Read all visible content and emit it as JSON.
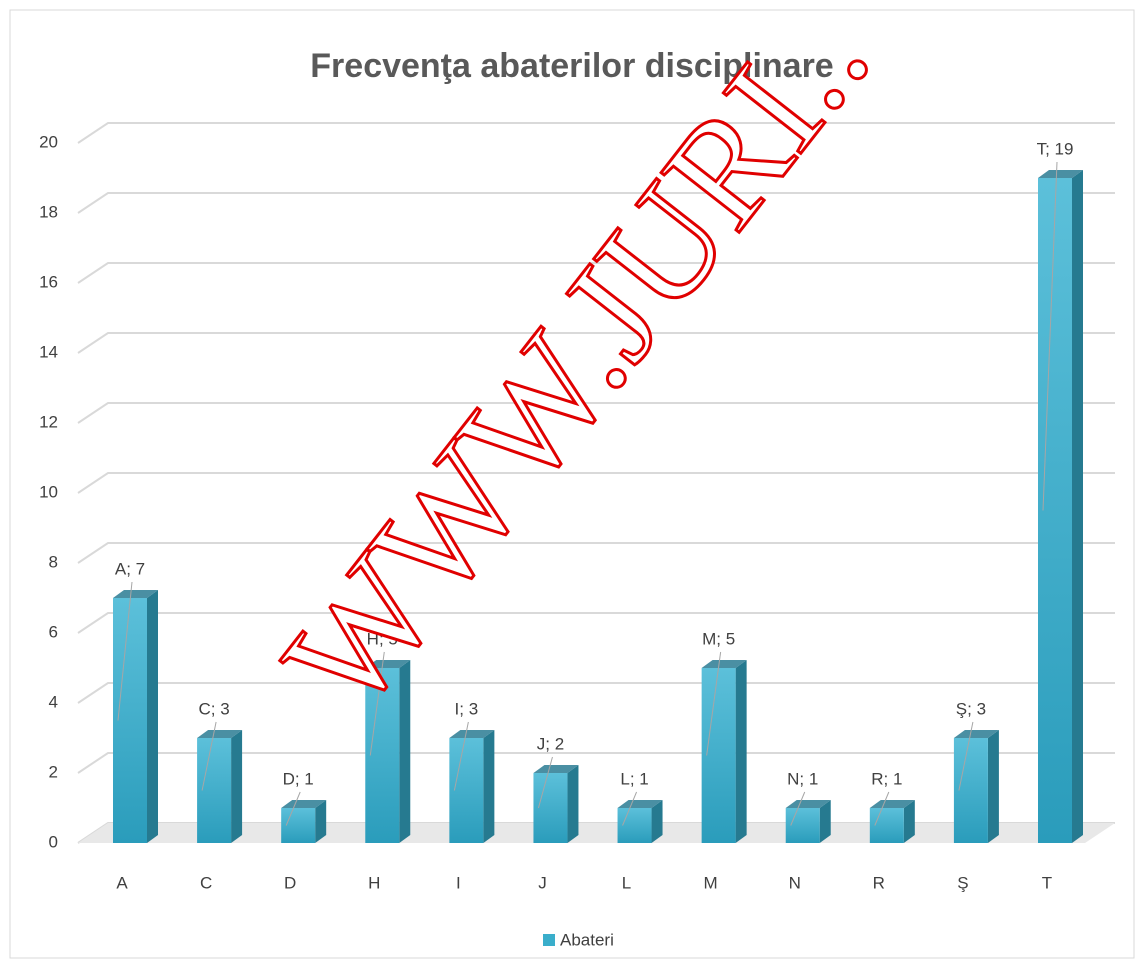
{
  "chart_data": {
    "type": "bar3d",
    "title": "Frecvenţa abaterilor disciplinare",
    "categories": [
      "A",
      "C",
      "D",
      "H",
      "I",
      "J",
      "L",
      "M",
      "N",
      "R",
      "Ş",
      "T"
    ],
    "series": [
      {
        "name": "Abateri",
        "color": "#3aaecb",
        "values": [
          7,
          3,
          1,
          5,
          3,
          2,
          1,
          5,
          1,
          1,
          3,
          19
        ],
        "value_labels": [
          "A; 7",
          "C; 3",
          "D; 1",
          "H; 5",
          "I; 3",
          "J; 2",
          "L; 1",
          "M; 5",
          "N; 1",
          "R; 1",
          "Ş; 3",
          "T; 19"
        ]
      }
    ],
    "ylim": [
      0,
      20
    ],
    "yticks": [
      0,
      2,
      4,
      6,
      8,
      10,
      12,
      14,
      16,
      18,
      20
    ],
    "grid": true,
    "legend": "bottom",
    "watermark": "WWW.JURI.."
  }
}
